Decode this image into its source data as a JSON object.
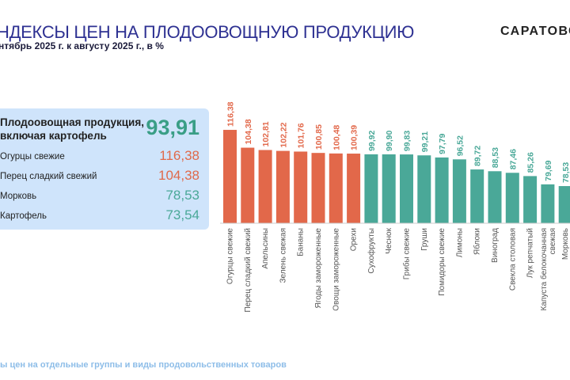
{
  "header": {
    "title": "НДЕКСЫ ЦЕН НА ПЛОДООВОЩНУЮ ПРОДУКЦИЮ",
    "subtitle": "нтябрь 2025 г. к августу 2025 г., в %",
    "brand": "САРАТОВС"
  },
  "summary": {
    "heading": "Плодоовощная продукция,\nвключая картофель",
    "value": "93,91",
    "items": [
      {
        "label": "Огурцы свежие",
        "value": "116,38",
        "color": "#e0694a"
      },
      {
        "label": "Перец сладкий свежий",
        "value": "104,38",
        "color": "#e0694a"
      },
      {
        "label": "Морковь",
        "value": "78,53",
        "color": "#4aa898"
      },
      {
        "label": "Картофель",
        "value": "73,54",
        "color": "#4aa898"
      }
    ]
  },
  "footer": {
    "text": "ы цен на отдельные группы и виды продовольственных товаров"
  },
  "chart_data": {
    "type": "bar",
    "title": "",
    "xlabel": "",
    "ylabel": "",
    "grid": false,
    "threshold": 100,
    "colors": {
      "above": "#e2684a",
      "below": "#4aa898"
    },
    "categories": [
      "Огурцы свежие",
      "Перец сладкий свежий",
      "Апельсины",
      "Зелень свежая",
      "Бананы",
      "Ягоды замороженные",
      "Овощи замороженные",
      "Орехи",
      "Сухофрукты",
      "Чеснок",
      "Грибы свежие",
      "Груши",
      "Помидоры свежие",
      "Лимоны",
      "Яблоки",
      "Виноград",
      "Свекла столовая",
      "Лук репчатый",
      "Капуста белокочанная|свежая",
      "Морковь"
    ],
    "values": [
      116.38,
      104.38,
      102.81,
      102.22,
      101.76,
      100.85,
      100.48,
      100.39,
      99.92,
      99.9,
      99.83,
      99.21,
      97.79,
      96.52,
      89.72,
      88.53,
      87.46,
      85.26,
      79.69,
      78.53
    ],
    "labels": [
      "116,38",
      "104,38",
      "102,81",
      "102,22",
      "101,76",
      "100,85",
      "100,48",
      "100,39",
      "99,92",
      "99,90",
      "99,83",
      "99,21",
      "97,79",
      "96,52",
      "89,72",
      "88,53",
      "87,46",
      "85,26",
      "79,69",
      "78,53"
    ]
  }
}
